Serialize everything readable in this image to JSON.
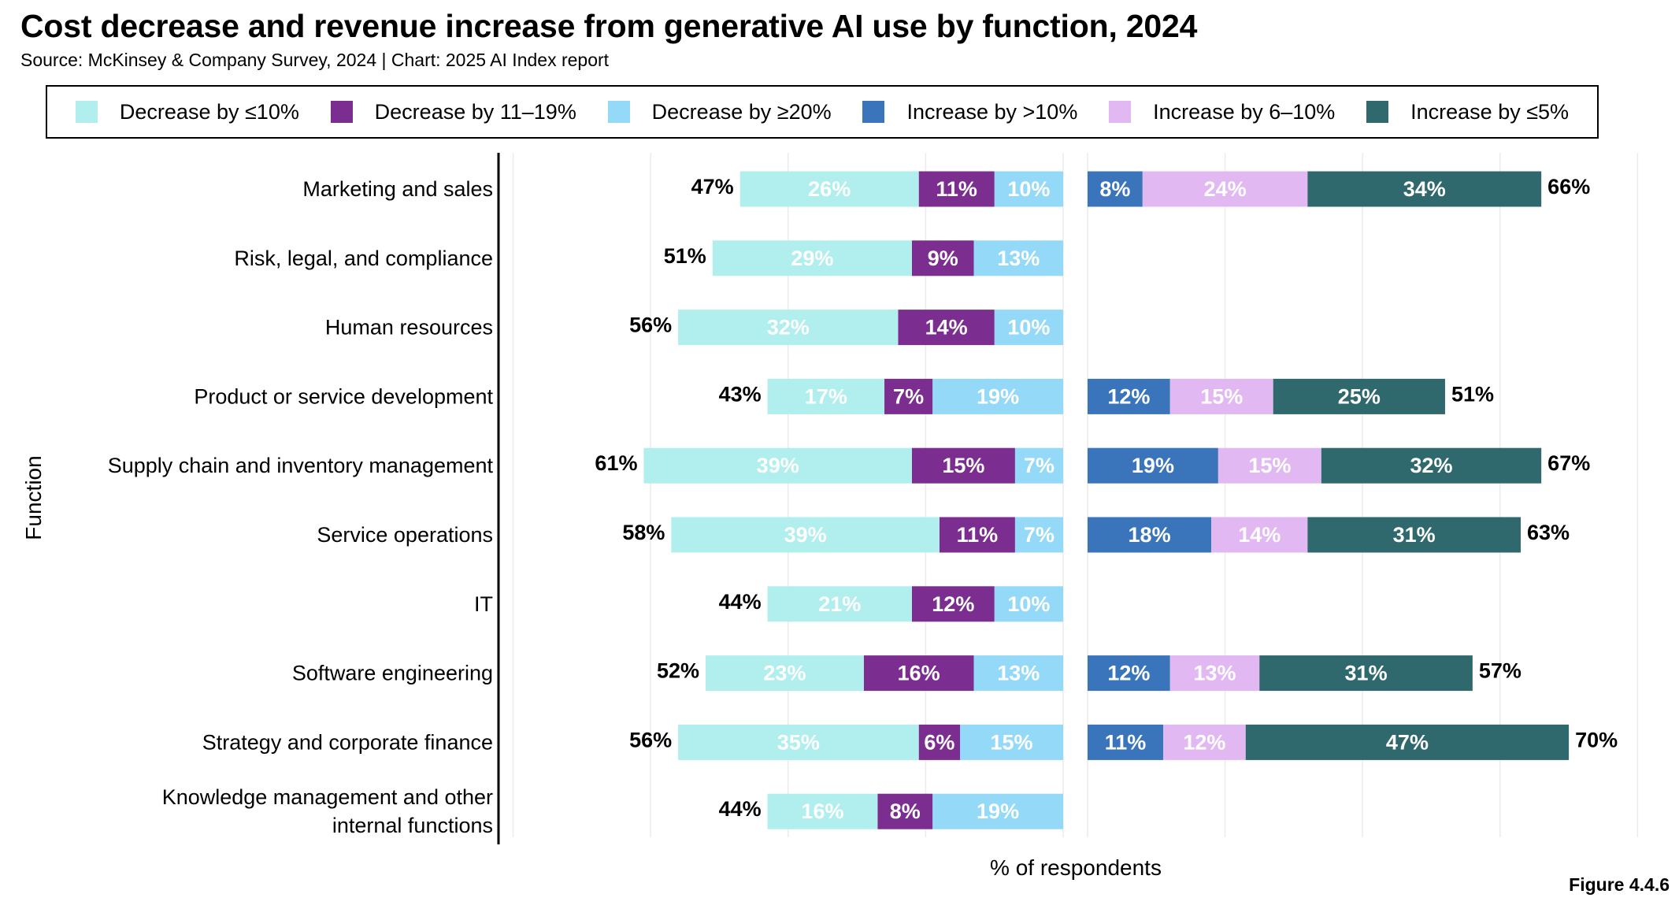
{
  "header": {
    "title": "Cost decrease and revenue increase from generative AI use by function, 2024",
    "subtitle": "Source: McKinsey & Company Survey, 2024 | Chart: 2025 AI Index report",
    "figure_label": "Figure 4.4.6"
  },
  "legend": [
    {
      "label": "Decrease by ≤10%",
      "color": "#b1eeee"
    },
    {
      "label": "Decrease by 11–19%",
      "color": "#7b2e8f"
    },
    {
      "label": "Decrease by ≥20%",
      "color": "#94d9f8"
    },
    {
      "label": "Increase by >10%",
      "color": "#3a75bb"
    },
    {
      "label": "Increase by 6–10%",
      "color": "#e2b8f2"
    },
    {
      "label": "Increase by ≤5%",
      "color": "#2f686d"
    }
  ],
  "chart_data": {
    "type": "bar",
    "orientation": "horizontal",
    "stacked": true,
    "title": "Cost decrease and revenue increase from generative AI use by function, 2024",
    "xlabel": "% of respondents",
    "ylabel": "Function",
    "categories": [
      "Marketing and sales",
      "Risk, legal, and compliance",
      "Human resources",
      "Product or service development",
      "Supply chain and inventory management",
      "Service operations",
      "IT",
      "Software engineering",
      "Strategy and corporate finance",
      "Knowledge management and other internal functions"
    ],
    "cost_decrease": {
      "series": [
        {
          "name": "Decrease by ≤10%",
          "color": "#b1eeee",
          "label_color": "#ffffff",
          "values": [
            26,
            29,
            32,
            17,
            39,
            39,
            21,
            23,
            35,
            16
          ]
        },
        {
          "name": "Decrease by 11–19%",
          "color": "#7b2e8f",
          "label_color": "#ffffff",
          "values": [
            11,
            9,
            14,
            7,
            15,
            11,
            12,
            16,
            6,
            8
          ]
        },
        {
          "name": "Decrease by ≥20%",
          "color": "#94d9f8",
          "label_color": "#ffffff",
          "values": [
            10,
            13,
            10,
            19,
            7,
            7,
            10,
            13,
            15,
            19
          ]
        }
      ],
      "totals": [
        "47%",
        "51%",
        "56%",
        "43%",
        "61%",
        "58%",
        "44%",
        "52%",
        "56%",
        "44%"
      ]
    },
    "revenue_increase": {
      "series": [
        {
          "name": "Increase by >10%",
          "color": "#3a75bb",
          "label_color": "#ffffff",
          "values": [
            8,
            null,
            null,
            12,
            19,
            18,
            null,
            12,
            11,
            null
          ]
        },
        {
          "name": "Increase by 6–10%",
          "color": "#e2b8f2",
          "label_color": "#ffffff",
          "values": [
            24,
            null,
            null,
            15,
            15,
            14,
            null,
            13,
            12,
            null
          ]
        },
        {
          "name": "Increase by ≤5%",
          "color": "#2f686d",
          "label_color": "#ffffff",
          "values": [
            34,
            null,
            null,
            25,
            32,
            31,
            null,
            31,
            47,
            null
          ]
        }
      ],
      "totals": [
        "66%",
        "",
        "",
        "51%",
        "67%",
        "63%",
        "",
        "57%",
        "70%",
        ""
      ]
    },
    "grid": true,
    "legend_position": "top"
  }
}
